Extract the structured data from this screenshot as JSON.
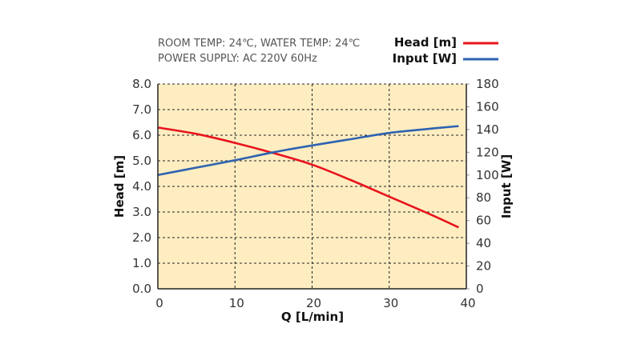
{
  "chart_data": {
    "type": "line",
    "notes": [
      "ROOM TEMP: 24℃, WATER TEMP: 24℃",
      "POWER SUPPLY: AC 220V 60Hz"
    ],
    "xlabel": "Q [L/min]",
    "ylabel": "Head [m]",
    "y2label": "Input [W]",
    "xlim": [
      0,
      40
    ],
    "ylim": [
      0,
      8
    ],
    "y2lim": [
      0,
      180
    ],
    "xticks": [
      "0",
      "10",
      "20",
      "30",
      "40"
    ],
    "yticks": [
      "0.0",
      "1.0",
      "2.0",
      "3.0",
      "4.0",
      "5.0",
      "6.0",
      "7.0",
      "8.0"
    ],
    "y2ticks": [
      "0",
      "20",
      "40",
      "60",
      "80",
      "100",
      "120",
      "140",
      "160",
      "180"
    ],
    "grid": true,
    "legend_position": "top-right",
    "series": [
      {
        "name": "Head [m]",
        "axis": "left",
        "color": "#e8141c",
        "x": [
          0,
          5,
          10,
          15,
          20,
          25,
          30,
          35,
          39
        ],
        "values": [
          6.3,
          6.05,
          5.7,
          5.3,
          4.85,
          4.25,
          3.6,
          2.95,
          2.4
        ]
      },
      {
        "name": "Input [W]",
        "axis": "right",
        "color": "#2e62b0",
        "x": [
          0,
          5,
          10,
          15,
          20,
          25,
          30,
          35,
          39
        ],
        "values": [
          100,
          106.5,
          113,
          120,
          126,
          131.5,
          137,
          140.5,
          143
        ]
      }
    ]
  }
}
